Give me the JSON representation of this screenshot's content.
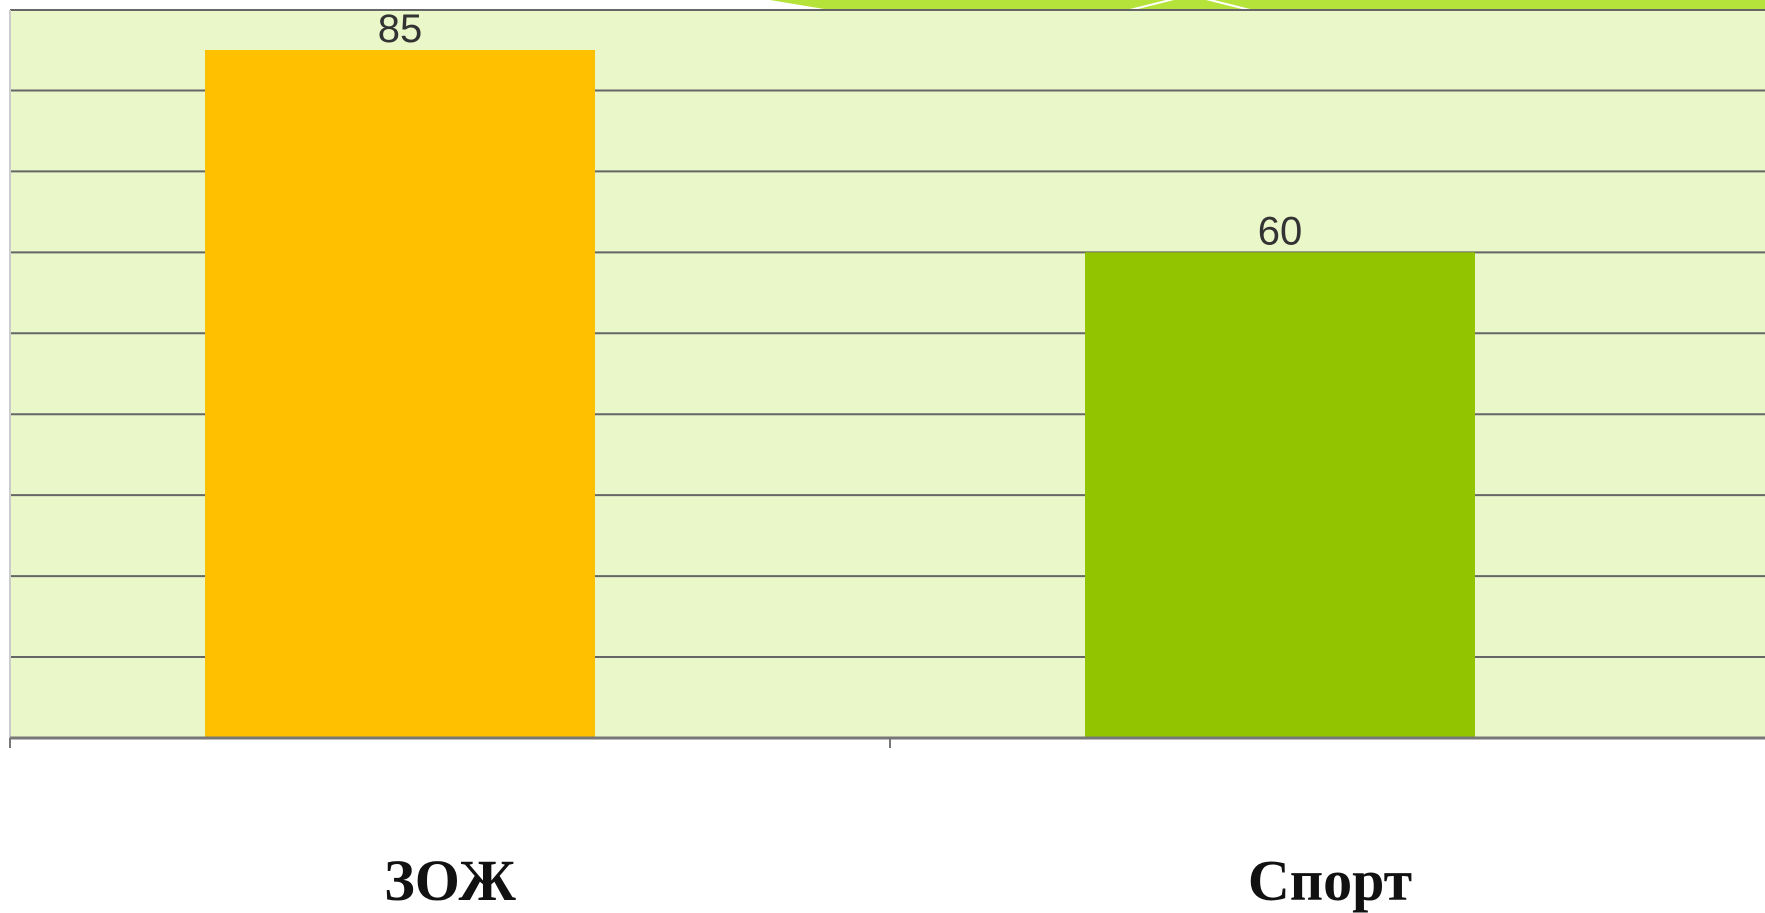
{
  "chart_data": {
    "type": "bar",
    "categories": [
      "ЗОЖ",
      "Спорт"
    ],
    "values": [
      85,
      60
    ],
    "bar_colors": [
      "#FFC000",
      "#92C500"
    ],
    "ylim": [
      0,
      85
    ],
    "grid": true,
    "plot_background": "#EAF7C8",
    "gridline_color": "#666666",
    "accent_top_color": "#B5E33A"
  }
}
